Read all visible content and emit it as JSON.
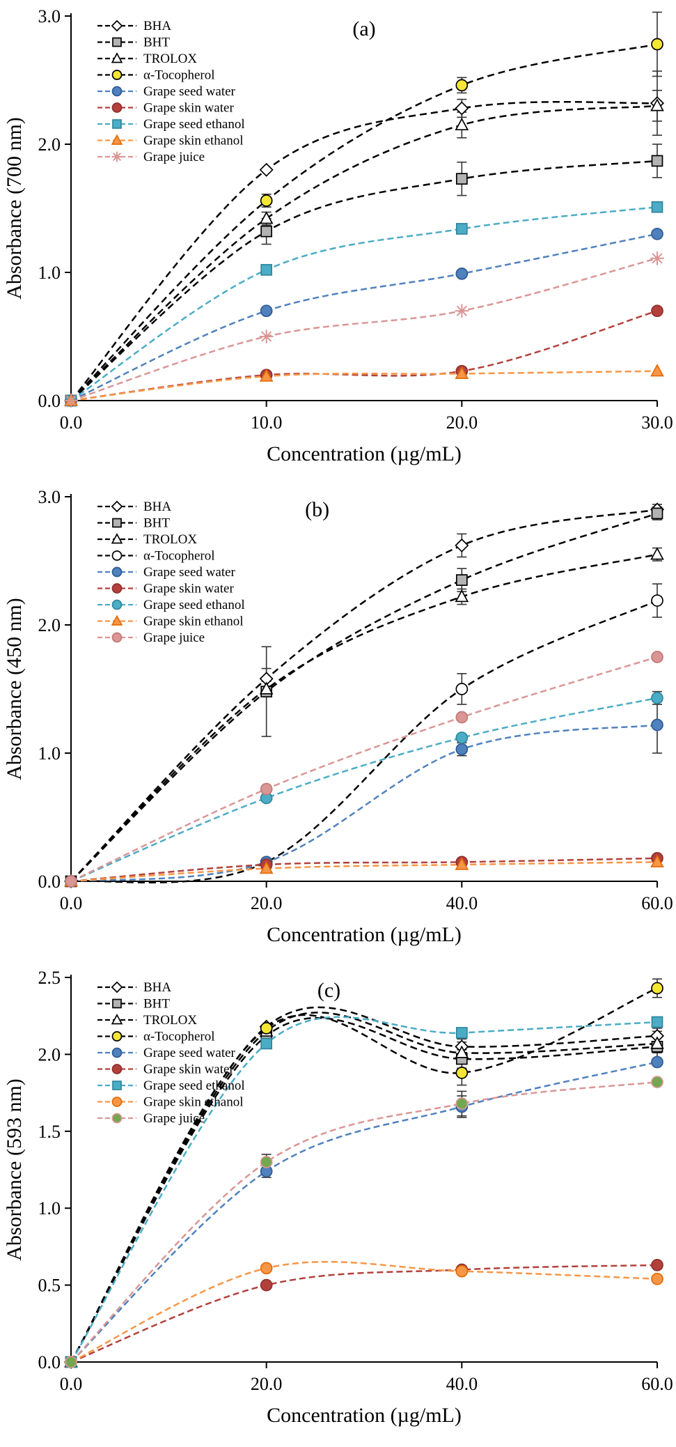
{
  "figure": {
    "description": "Antioxidant absorbance vs concentration, three panels",
    "panels": [
      "(a)",
      "(b)",
      "(c)"
    ]
  },
  "chart_data": [
    {
      "type": "line",
      "panel": "(a)",
      "panel_fx": 0.5,
      "xlabel": "Concentration (µg/mL)",
      "ylabel": "Absorbance (700 nm)",
      "xlim": [
        0,
        30
      ],
      "ylim": [
        0,
        3
      ],
      "xticks": {
        "values": [
          0,
          10,
          20,
          30
        ],
        "labels": [
          "0.0",
          "10.0",
          "20.0",
          "30.0"
        ]
      },
      "yticks": {
        "values": [
          0,
          1,
          2,
          3
        ],
        "labels": [
          "0.0",
          "1.0",
          "2.0",
          "3.0"
        ]
      },
      "x": [
        0,
        10,
        20,
        30
      ],
      "series": [
        {
          "name": "BHA",
          "color": "#000000",
          "dash": "10,6",
          "marker": "diamond",
          "fill": "#ffffff",
          "stroke": "#000000",
          "values": [
            0,
            1.8,
            2.28,
            2.32
          ],
          "errors": [
            0,
            0,
            0.07,
            0.25
          ]
        },
        {
          "name": "BHT",
          "color": "#000000",
          "dash": "10,6",
          "marker": "square",
          "fill": "#b3b3b3",
          "stroke": "#000000",
          "values": [
            0,
            1.32,
            1.73,
            1.87
          ],
          "errors": [
            0,
            0.1,
            0.13,
            0.13
          ]
        },
        {
          "name": "TROLOX",
          "color": "#000000",
          "dash": "10,6",
          "marker": "triangle",
          "fill": "#ffffff",
          "stroke": "#000000",
          "values": [
            0,
            1.42,
            2.15,
            2.3
          ],
          "errors": [
            0,
            0.05,
            0.1,
            0.12
          ]
        },
        {
          "name": "α-Tocopherol",
          "color": "#000000",
          "dash": "10,6",
          "marker": "circle",
          "fill": "#f5e636",
          "stroke": "#000000",
          "values": [
            0,
            1.56,
            2.46,
            2.78
          ],
          "errors": [
            0,
            0.05,
            0.06,
            0.25
          ]
        },
        {
          "name": "Grape seed water",
          "color": "#4f81bd",
          "dash": "9,5",
          "marker": "circle",
          "fill": "#4f81bd",
          "stroke": "#2f5a94",
          "values": [
            0,
            0.7,
            0.99,
            1.3
          ],
          "errors": [
            0,
            0,
            0,
            0
          ]
        },
        {
          "name": "Grape skin water",
          "color": "#b2413c",
          "dash": "9,5",
          "marker": "circle",
          "fill": "#b2413c",
          "stroke": "#8f2f2b",
          "values": [
            0,
            0.2,
            0.23,
            0.7
          ],
          "errors": [
            0,
            0,
            0,
            0
          ]
        },
        {
          "name": "Grape seed ethanol",
          "color": "#4bacc6",
          "dash": "9,5",
          "marker": "square",
          "fill": "#4bacc6",
          "stroke": "#31859c",
          "values": [
            0,
            1.02,
            1.34,
            1.51
          ],
          "errors": [
            0,
            0,
            0,
            0
          ]
        },
        {
          "name": "Grape skin ethanol",
          "color": "#f79646",
          "dash": "9,5",
          "marker": "triangle",
          "fill": "#f79646",
          "stroke": "#e36c0a",
          "values": [
            0,
            0.19,
            0.21,
            0.23
          ],
          "errors": [
            0,
            0,
            0,
            0
          ]
        },
        {
          "name": "Grape juice",
          "color": "#d99694",
          "dash": "9,5",
          "marker": "asterisk",
          "fill": "#d99694",
          "stroke": "#d99694",
          "values": [
            0,
            0.5,
            0.7,
            1.11
          ],
          "errors": [
            0,
            0,
            0,
            0
          ]
        }
      ]
    },
    {
      "type": "line",
      "panel": "(b)",
      "panel_fx": 0.42,
      "xlabel": "Concentration (µg/mL)",
      "ylabel": "Absorbance (450 nm)",
      "xlim": [
        0,
        60
      ],
      "ylim": [
        0,
        3
      ],
      "xticks": {
        "values": [
          0,
          20,
          40,
          60
        ],
        "labels": [
          "0.0",
          "20.0",
          "40.0",
          "60.0"
        ]
      },
      "yticks": {
        "values": [
          0,
          1,
          2,
          3
        ],
        "labels": [
          "0.0",
          "1.0",
          "2.0",
          "3.0"
        ]
      },
      "x": [
        0,
        20,
        40,
        60
      ],
      "series": [
        {
          "name": "BHA",
          "color": "#000000",
          "dash": "10,6",
          "marker": "diamond",
          "fill": "#ffffff",
          "stroke": "#000000",
          "values": [
            0,
            1.58,
            2.62,
            2.9
          ],
          "errors": [
            0,
            0.08,
            0.09,
            0.04
          ]
        },
        {
          "name": "BHT",
          "color": "#000000",
          "dash": "10,6",
          "marker": "square",
          "fill": "#b3b3b3",
          "stroke": "#000000",
          "values": [
            0,
            1.48,
            2.35,
            2.87
          ],
          "errors": [
            0,
            0.35,
            0.09,
            0.05
          ]
        },
        {
          "name": "TROLOX",
          "color": "#000000",
          "dash": "10,6",
          "marker": "triangle",
          "fill": "#ffffff",
          "stroke": "#000000",
          "values": [
            0,
            1.5,
            2.22,
            2.55
          ],
          "errors": [
            0,
            0.06,
            0.06,
            0.05
          ]
        },
        {
          "name": "α-Tocopherol",
          "color": "#000000",
          "dash": "10,6",
          "marker": "circle",
          "fill": "#ffffff",
          "stroke": "#000000",
          "values": [
            0,
            0.15,
            1.5,
            2.19
          ],
          "errors": [
            0,
            0,
            0.12,
            0.13
          ]
        },
        {
          "name": "Grape seed water",
          "color": "#4f81bd",
          "dash": "9,5",
          "marker": "circle",
          "fill": "#4f81bd",
          "stroke": "#2f5a94",
          "values": [
            0,
            0.15,
            1.03,
            1.22
          ],
          "errors": [
            0,
            0,
            0.05,
            0.22
          ]
        },
        {
          "name": "Grape skin water",
          "color": "#b2413c",
          "dash": "9,5",
          "marker": "circle",
          "fill": "#b2413c",
          "stroke": "#8f2f2b",
          "values": [
            0,
            0.13,
            0.15,
            0.18
          ],
          "errors": [
            0,
            0,
            0,
            0
          ]
        },
        {
          "name": "Grape seed ethanol",
          "color": "#4bacc6",
          "dash": "9,5",
          "marker": "circle",
          "fill": "#4bacc6",
          "stroke": "#31859c",
          "values": [
            0,
            0.65,
            1.12,
            1.43
          ],
          "errors": [
            0,
            0,
            0,
            0.05
          ]
        },
        {
          "name": "Grape skin ethanol",
          "color": "#f79646",
          "dash": "9,5",
          "marker": "triangle",
          "fill": "#f79646",
          "stroke": "#e36c0a",
          "values": [
            0,
            0.1,
            0.13,
            0.15
          ],
          "errors": [
            0,
            0,
            0,
            0
          ]
        },
        {
          "name": "Grape juice",
          "color": "#d99694",
          "dash": "9,5",
          "marker": "circle",
          "fill": "#d99694",
          "stroke": "#c27a77",
          "values": [
            0,
            0.72,
            1.28,
            1.75
          ],
          "errors": [
            0,
            0,
            0,
            0
          ]
        }
      ]
    },
    {
      "type": "line",
      "panel": "(c)",
      "panel_fx": 0.44,
      "xlabel": "Concentration (µg/mL)",
      "ylabel": "Absorbance (593 nm)",
      "xlim": [
        0,
        60
      ],
      "ylim": [
        0,
        2.5
      ],
      "xticks": {
        "values": [
          0,
          20,
          40,
          60
        ],
        "labels": [
          "0.0",
          "20.0",
          "40.0",
          "60.0"
        ]
      },
      "yticks": {
        "values": [
          0,
          0.5,
          1,
          1.5,
          2,
          2.5
        ],
        "labels": [
          "0.0",
          "0.5",
          "1.0",
          "1.5",
          "2.0",
          "2.5"
        ]
      },
      "x": [
        0,
        20,
        40,
        60
      ],
      "series": [
        {
          "name": "BHA",
          "color": "#000000",
          "dash": "10,6",
          "marker": "diamond",
          "fill": "#ffffff",
          "stroke": "#000000",
          "values": [
            0,
            2.18,
            2.05,
            2.12
          ],
          "errors": [
            0,
            0,
            0.05,
            0.05
          ]
        },
        {
          "name": "BHT",
          "color": "#000000",
          "dash": "10,6",
          "marker": "square",
          "fill": "#b3b3b3",
          "stroke": "#000000",
          "values": [
            0,
            2.12,
            1.97,
            2.05
          ],
          "errors": [
            0,
            0,
            0.06,
            0.1
          ]
        },
        {
          "name": "TROLOX",
          "color": "#000000",
          "dash": "10,6",
          "marker": "triangle",
          "fill": "#ffffff",
          "stroke": "#000000",
          "values": [
            0,
            2.15,
            2.01,
            2.07
          ],
          "errors": [
            0,
            0,
            0.07,
            0.06
          ]
        },
        {
          "name": "α-Tocopherol",
          "color": "#000000",
          "dash": "10,6",
          "marker": "circle",
          "fill": "#f5e636",
          "stroke": "#000000",
          "values": [
            0,
            2.17,
            1.88,
            2.43
          ],
          "errors": [
            0,
            0,
            0.08,
            0.06
          ]
        },
        {
          "name": "Grape seed water",
          "color": "#4f81bd",
          "dash": "9,5",
          "marker": "circle",
          "fill": "#4f81bd",
          "stroke": "#2f5a94",
          "values": [
            0,
            1.24,
            1.66,
            1.95
          ],
          "errors": [
            0,
            0.04,
            0.07,
            0
          ]
        },
        {
          "name": "Grape skin water",
          "color": "#b2413c",
          "dash": "9,5",
          "marker": "circle",
          "fill": "#b2413c",
          "stroke": "#8f2f2b",
          "values": [
            0,
            0.5,
            0.6,
            0.63
          ],
          "errors": [
            0,
            0,
            0,
            0
          ]
        },
        {
          "name": "Grape seed ethanol",
          "color": "#4bacc6",
          "dash": "9,5",
          "marker": "square",
          "fill": "#4bacc6",
          "stroke": "#31859c",
          "values": [
            0,
            2.07,
            2.14,
            2.21
          ],
          "errors": [
            0,
            0,
            0,
            0
          ]
        },
        {
          "name": "Grape skin ethanol",
          "color": "#f79646",
          "dash": "9,5",
          "marker": "circle",
          "fill": "#f79646",
          "stroke": "#e36c0a",
          "values": [
            0,
            0.61,
            0.59,
            0.54
          ],
          "errors": [
            0,
            0,
            0,
            0
          ]
        },
        {
          "name": "Grape juice",
          "color": "#d99694",
          "dash": "9,5",
          "marker": "circle",
          "fill": "#72a84f",
          "stroke": "#d99694",
          "values": [
            0,
            1.3,
            1.68,
            1.82
          ],
          "errors": [
            0,
            0.05,
            0.08,
            0
          ]
        }
      ]
    }
  ]
}
